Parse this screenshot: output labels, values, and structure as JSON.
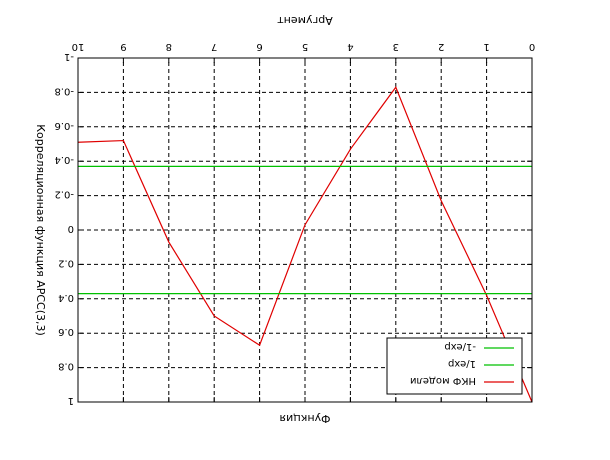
{
  "chart_data": {
    "type": "line",
    "title": "",
    "xlabel": "Аргумент",
    "xlabel_bottom": "Функция",
    "ylabel": "Корреляционная функция АРСС(3,3)",
    "xlim": [
      0,
      10
    ],
    "ylim": [
      -1,
      1
    ],
    "x_ticks": [
      0,
      1,
      2,
      3,
      4,
      5,
      6,
      7,
      8,
      9,
      10
    ],
    "x_tick_labels": [
      "0",
      "1",
      "2",
      "3",
      "4",
      "5",
      "6",
      "7",
      "8",
      "9",
      "10"
    ],
    "y_ticks": [
      -1,
      -0.8,
      -0.6,
      -0.4,
      -0.2,
      0,
      0.2,
      0.4,
      0.6,
      0.8,
      1
    ],
    "y_tick_labels": [
      "-1",
      "-0.8",
      "-0.6",
      "-0.4",
      "-0.2",
      "0",
      "0.2",
      "0.4",
      "0.6",
      "0.8",
      "1"
    ],
    "image_rotated_180": true,
    "grid": true,
    "legend_position": "bottom-right",
    "series": [
      {
        "name": "НКФ модели",
        "color": "#e00000",
        "kind": "line",
        "x": [
          0,
          1,
          2,
          3,
          4,
          5,
          6,
          7,
          8,
          9,
          10
        ],
        "y": [
          1,
          0.38,
          -0.17,
          -0.83,
          -0.47,
          -0.03,
          0.67,
          0.5,
          0.07,
          -0.52,
          -0.51
        ]
      },
      {
        "name": "1/exp",
        "color": "#00c000",
        "kind": "hline",
        "y": 0.37
      },
      {
        "name": "-1/exp",
        "color": "#00c000",
        "kind": "hline",
        "y": -0.37
      }
    ]
  }
}
